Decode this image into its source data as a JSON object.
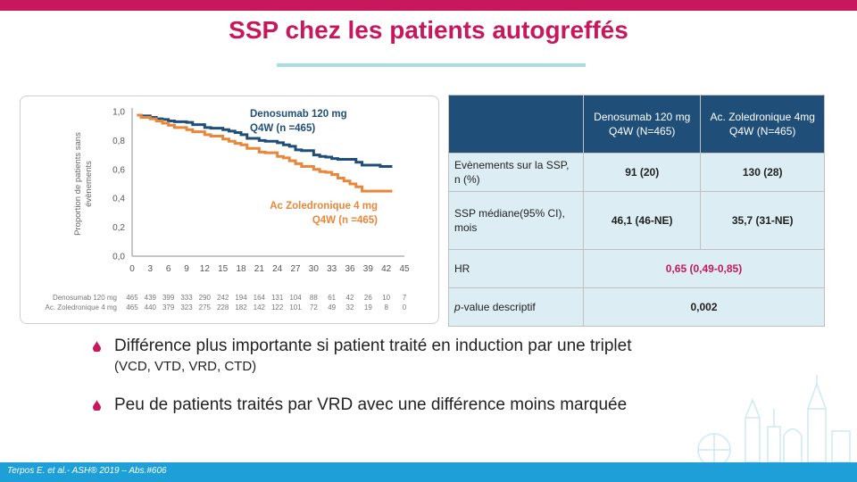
{
  "title": "SSP chez les patients autogreffés",
  "chart_data": {
    "type": "line",
    "title": "",
    "xlabel": "",
    "ylabel": "Proportion de patients sans évènements",
    "xlim": [
      0,
      45
    ],
    "ylim": [
      0,
      1
    ],
    "x_ticks": [
      "0",
      "3",
      "6",
      "9",
      "12",
      "15",
      "18",
      "21",
      "24",
      "27",
      "30",
      "33",
      "36",
      "39",
      "42",
      "45"
    ],
    "y_ticks": [
      "0,0",
      "0,2",
      "0,4",
      "0,6",
      "0,8",
      "1,0"
    ],
    "series": [
      {
        "name": "Denosumab 120 mg Q4W (n =465)",
        "label_lines": [
          "Denosumab 120 mg",
          "Q4W (n =465)"
        ],
        "color": "#1f4e79",
        "x": [
          0.8,
          1.5,
          3,
          4,
          5,
          6,
          7,
          9,
          10,
          12,
          13,
          15,
          16,
          17,
          18,
          19,
          21,
          22,
          24,
          25,
          26,
          27,
          28,
          30,
          31,
          32,
          33,
          34,
          36,
          37,
          38,
          40,
          41,
          42,
          43
        ],
        "y": [
          0.975,
          0.97,
          0.96,
          0.95,
          0.945,
          0.935,
          0.93,
          0.925,
          0.91,
          0.89,
          0.885,
          0.875,
          0.865,
          0.855,
          0.84,
          0.815,
          0.8,
          0.795,
          0.785,
          0.77,
          0.76,
          0.735,
          0.73,
          0.7,
          0.69,
          0.685,
          0.675,
          0.67,
          0.67,
          0.65,
          0.63,
          0.63,
          0.62,
          0.62,
          0.62
        ]
      },
      {
        "name": "Ac Zoledronique 4 mg Q4W (n =465)",
        "label_lines": [
          "Ac Zoledronique 4 mg",
          "Q4W (n =465)"
        ],
        "color": "#e8873a",
        "x": [
          0.8,
          1.5,
          3,
          4,
          5,
          6,
          7,
          9,
          10,
          12,
          13,
          15,
          16,
          17,
          18,
          19,
          21,
          22,
          24,
          25,
          26,
          27,
          28,
          30,
          31,
          32,
          33,
          34,
          35,
          36,
          37,
          38,
          40,
          41,
          42,
          43
        ],
        "y": [
          0.975,
          0.96,
          0.95,
          0.935,
          0.92,
          0.905,
          0.89,
          0.875,
          0.86,
          0.84,
          0.83,
          0.81,
          0.795,
          0.78,
          0.77,
          0.745,
          0.72,
          0.715,
          0.69,
          0.68,
          0.66,
          0.64,
          0.62,
          0.6,
          0.585,
          0.58,
          0.565,
          0.54,
          0.52,
          0.5,
          0.48,
          0.45,
          0.45,
          0.45,
          0.45,
          0.45
        ]
      }
    ],
    "risk_table": [
      {
        "label": "Denosumab 120 mg",
        "values": [
          "465",
          "439",
          "399",
          "333",
          "290",
          "242",
          "194",
          "164",
          "131",
          "104",
          "88",
          "61",
          "42",
          "26",
          "10",
          "7"
        ]
      },
      {
        "label": "Ac. Zoledronique 4 mg",
        "values": [
          "465",
          "440",
          "379",
          "323",
          "275",
          "228",
          "182",
          "142",
          "122",
          "101",
          "72",
          "49",
          "32",
          "19",
          "8",
          "0"
        ]
      }
    ],
    "grid": false,
    "legend": "inline labels"
  },
  "table": {
    "headers": [
      "",
      "Denosumab 120 mg Q4W (N=465)",
      "Ac. Zoledronique 4mg Q4W (N=465)"
    ],
    "rows": [
      {
        "label": "Evènements sur la SSP, n (%)",
        "v1": "91 (20)",
        "v2": "130 (28)"
      },
      {
        "label": "SSP médiane(95% CI), mois",
        "v1": "46,1 (46-NE)",
        "v2": "35,7 (31-NE)"
      },
      {
        "label": "HR",
        "merged": "0,65 (0,49-0,85)"
      },
      {
        "label_italic": "p",
        "label_rest": "-value descriptif",
        "merged": "0,002"
      }
    ]
  },
  "bullets": {
    "b1_text": "Différence plus importante si patient traité en induction par une triplet",
    "b1_sub": "(VCD, VTD, VRD, CTD)",
    "b2_text": "Peu de patients traités par VRD avec une différence moins marquée"
  },
  "footer": {
    "citation": "Terpos E. et al.- ASH® 2019 – Abs.#606"
  },
  "colors": {
    "accent": "#c8175d",
    "table_header": "#1f4e79",
    "table_cell": "#dcedf3",
    "footer": "#1e9fd7"
  }
}
